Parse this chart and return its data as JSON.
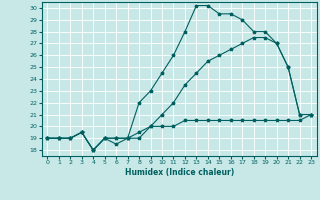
{
  "xlabel": "Humidex (Indice chaleur)",
  "bg_color": "#c8e8e8",
  "grid_color": "#ffffff",
  "line_color": "#006060",
  "xlim": [
    -0.5,
    23.5
  ],
  "ylim": [
    17.5,
    30.5
  ],
  "xticks": [
    0,
    1,
    2,
    3,
    4,
    5,
    6,
    7,
    8,
    9,
    10,
    11,
    12,
    13,
    14,
    15,
    16,
    17,
    18,
    19,
    20,
    21,
    22,
    23
  ],
  "yticks": [
    18,
    19,
    20,
    21,
    22,
    23,
    24,
    25,
    26,
    27,
    28,
    29,
    30
  ],
  "line1_x": [
    0,
    1,
    2,
    3,
    4,
    5,
    6,
    7,
    8,
    9,
    10,
    11,
    12,
    13,
    14,
    15,
    16,
    17,
    18,
    19,
    20,
    21,
    22,
    23
  ],
  "line1_y": [
    19.0,
    19.0,
    19.0,
    19.5,
    18.0,
    19.0,
    18.5,
    19.0,
    19.5,
    20.0,
    20.0,
    20.0,
    20.5,
    20.5,
    20.5,
    20.5,
    20.5,
    20.5,
    20.5,
    20.5,
    20.5,
    20.5,
    20.5,
    21.0
  ],
  "line2_x": [
    0,
    1,
    2,
    3,
    4,
    5,
    6,
    7,
    8,
    9,
    10,
    11,
    12,
    13,
    14,
    15,
    16,
    17,
    18,
    19,
    20,
    21,
    22,
    23
  ],
  "line2_y": [
    19.0,
    19.0,
    19.0,
    19.5,
    18.0,
    19.0,
    19.0,
    19.0,
    22.0,
    23.0,
    24.5,
    26.0,
    28.0,
    30.2,
    30.2,
    29.5,
    29.5,
    29.0,
    28.0,
    28.0,
    27.0,
    25.0,
    21.0,
    21.0
  ],
  "line3_x": [
    0,
    1,
    2,
    3,
    4,
    5,
    6,
    7,
    8,
    9,
    10,
    11,
    12,
    13,
    14,
    15,
    16,
    17,
    18,
    19,
    20,
    21,
    22,
    23
  ],
  "line3_y": [
    19.0,
    19.0,
    19.0,
    19.5,
    18.0,
    19.0,
    19.0,
    19.0,
    19.0,
    20.0,
    21.0,
    22.0,
    23.5,
    24.5,
    25.5,
    26.0,
    26.5,
    27.0,
    27.5,
    27.5,
    27.0,
    25.0,
    21.0,
    21.0
  ]
}
